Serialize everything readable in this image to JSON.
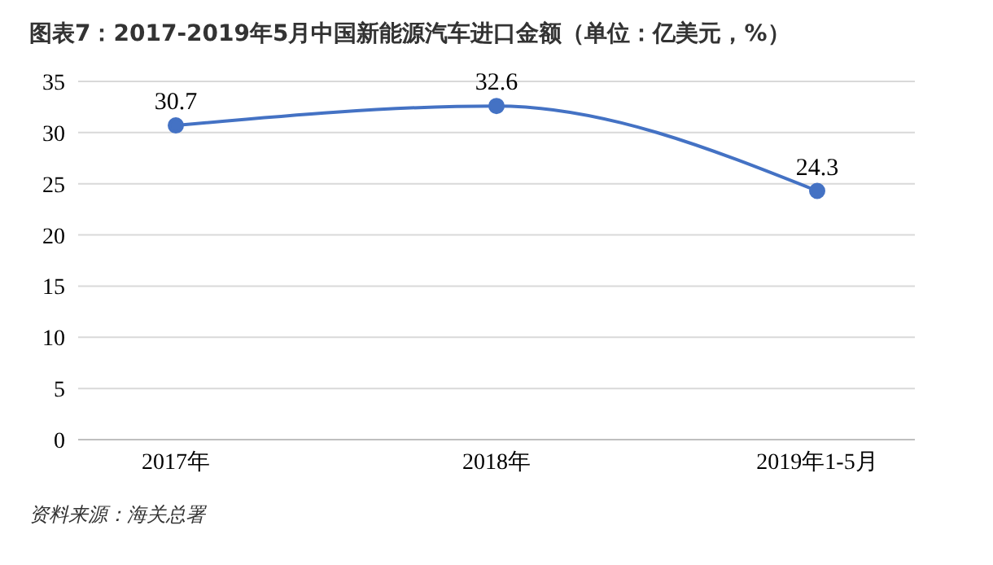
{
  "chart_data": {
    "type": "line",
    "title": "图表7：2017-2019年5月中国新能源汽车进口金额（单位：亿美元，%）",
    "categories": [
      "2017年",
      "2018年",
      "2019年1-5月"
    ],
    "series": [
      {
        "color": "#4472c4",
        "values": [
          30.7,
          32.6,
          24.3
        ]
      }
    ],
    "ylim": [
      0,
      35
    ],
    "yticks": [
      0,
      5,
      10,
      15,
      20,
      25,
      30,
      35
    ],
    "grid": "y",
    "marker": "circle",
    "data_labels": true,
    "annotations": [
      "资料来源：海关总署"
    ]
  }
}
